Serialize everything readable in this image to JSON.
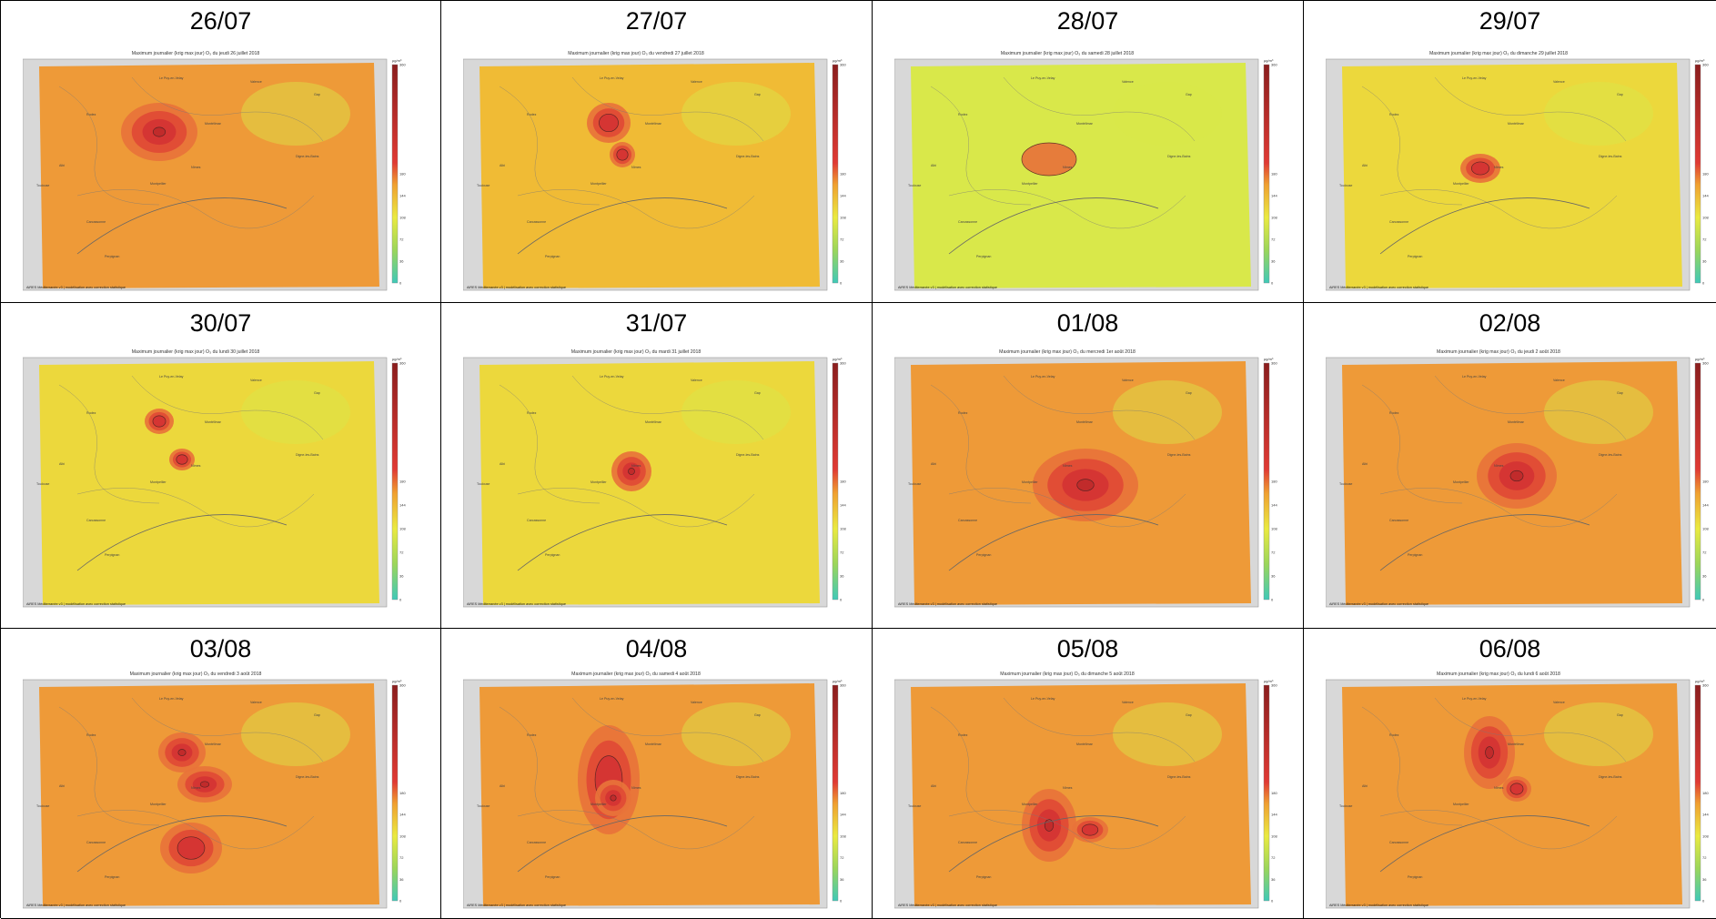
{
  "map_title_prefix": "Maximum journalier (krig max jour) O₃",
  "unit": "µg/m³",
  "scale_ticks": [
    "360",
    "180",
    "144",
    "108",
    "72",
    "36",
    "0"
  ],
  "footer": "AiRES Méditerranée v3 | modélisation avec correction statistique",
  "place_labels": [
    "Le Puy-en-Velay",
    "Valence",
    "Rodez",
    "Montélimar",
    "Digne-les-Bains",
    "Montpellier",
    "Albi",
    "Toulouse",
    "Carcassonne",
    "Perpignan",
    "Gap",
    "Nîmes"
  ],
  "panels": [
    {
      "date": "26/07",
      "subtitle": "du jeudi 26 juillet 2018",
      "level": "high"
    },
    {
      "date": "27/07",
      "subtitle": "du vendredi 27 juillet 2018",
      "level": "mid"
    },
    {
      "date": "28/07",
      "subtitle": "du samedi 28 juillet 2018",
      "level": "low"
    },
    {
      "date": "29/07",
      "subtitle": "du dimanche 29 juillet 2018",
      "level": "mid-low"
    },
    {
      "date": "30/07",
      "subtitle": "du lundi 30 juillet 2018",
      "level": "mid-low"
    },
    {
      "date": "31/07",
      "subtitle": "du mardi 31 juillet 2018",
      "level": "mid-low"
    },
    {
      "date": "01/08",
      "subtitle": "du mercredi 1er août 2018",
      "level": "high"
    },
    {
      "date": "02/08",
      "subtitle": "du jeudi 2 août 2018",
      "level": "high"
    },
    {
      "date": "03/08",
      "subtitle": "du vendredi 3 août 2018",
      "level": "high"
    },
    {
      "date": "04/08",
      "subtitle": "du samedi 4 août 2018",
      "level": "high"
    },
    {
      "date": "05/08",
      "subtitle": "du dimanche 5 août 2018",
      "level": "high"
    },
    {
      "date": "06/08",
      "subtitle": "du lundi 6 août 2018",
      "level": "high"
    }
  ],
  "colors": {
    "low": "#d9e84a",
    "mid_low": "#ecd83c",
    "mid": "#f0bb35",
    "high": "#ee9a38",
    "hot1": "#e8733a",
    "hot2": "#e04a35",
    "hot3": "#d43333",
    "relief": "#d8d8d8"
  }
}
